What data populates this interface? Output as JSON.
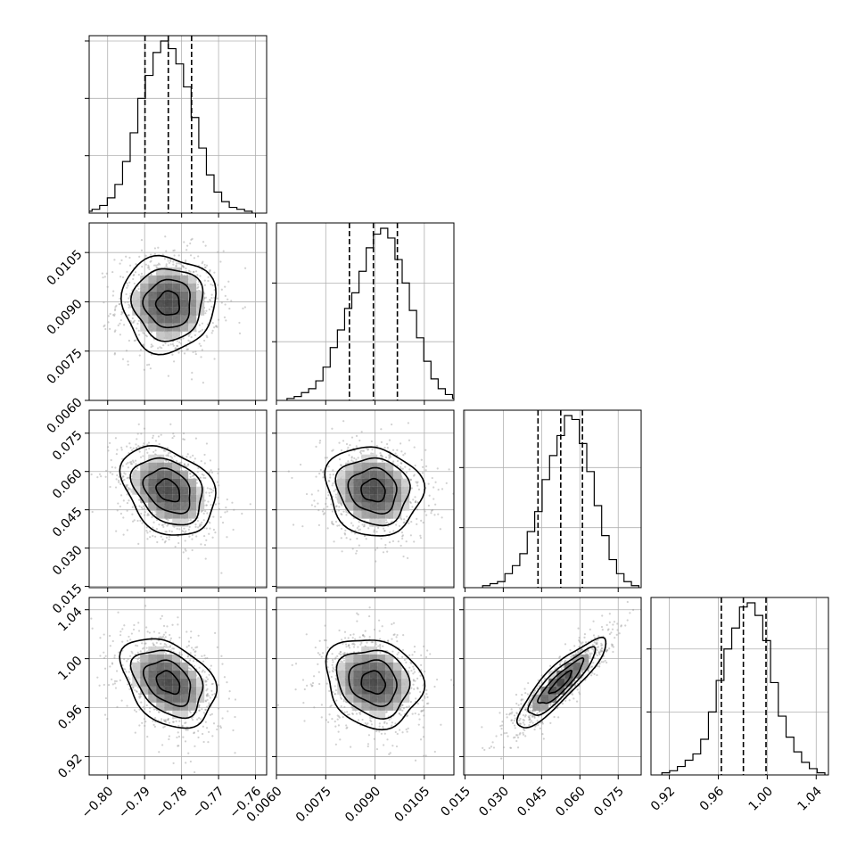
{
  "chart_data": {
    "type": "corner",
    "title": "",
    "parameters": [
      {
        "name": "",
        "range": [
          -0.805,
          -0.757
        ],
        "ticks": [
          -0.8,
          -0.79,
          -0.78,
          -0.77,
          -0.76
        ],
        "tick_labels": [
          "−0.80",
          "−0.79",
          "−0.78",
          "−0.77",
          "−0.76"
        ],
        "median": -0.7836,
        "quantiles": [
          -0.7899,
          -0.7836,
          -0.7773
        ],
        "hist_counts": [
          1,
          2,
          4,
          8,
          15,
          27,
          42,
          60,
          72,
          84,
          90,
          86,
          78,
          66,
          50,
          34,
          20,
          11,
          6,
          3,
          2,
          1
        ]
      },
      {
        "name": "",
        "range": [
          0.006,
          0.0114
        ],
        "ticks": [
          0.006,
          0.0075,
          0.009,
          0.0105
        ],
        "tick_labels": [
          "0.0060",
          "0.0075",
          "0.0090",
          "0.0105"
        ],
        "median": 0.00895,
        "quantiles": [
          0.00822,
          0.00895,
          0.00968
        ],
        "hist_counts": [
          1,
          2,
          4,
          6,
          10,
          17,
          27,
          36,
          47,
          55,
          66,
          78,
          85,
          88,
          83,
          72,
          60,
          46,
          32,
          20,
          11,
          6,
          3,
          1
        ]
      },
      {
        "name": "",
        "range": [
          0.0145,
          0.084
        ],
        "ticks": [
          0.015,
          0.03,
          0.045,
          0.06,
          0.075
        ],
        "tick_labels": [
          "0.015",
          "0.030",
          "0.045",
          "0.060",
          "0.075"
        ],
        "median": 0.0525,
        "quantiles": [
          0.0436,
          0.0525,
          0.061
        ],
        "hist_counts": [
          1,
          2,
          3,
          7,
          11,
          17,
          28,
          38,
          54,
          66,
          76,
          86,
          84,
          72,
          58,
          41,
          26,
          14,
          7,
          3,
          1
        ]
      },
      {
        "name": "",
        "range": [
          0.905,
          1.05
        ],
        "ticks": [
          0.92,
          0.96,
          1.0,
          1.04
        ],
        "tick_labels": [
          "0.92",
          "0.96",
          "1.00",
          "1.04"
        ],
        "median": 0.9805,
        "quantiles": [
          0.9625,
          0.9805,
          0.999
        ],
        "hist_counts": [
          1,
          2,
          4,
          7,
          10,
          17,
          30,
          45,
          60,
          70,
          80,
          82,
          76,
          64,
          44,
          28,
          18,
          11,
          6,
          3,
          1
        ]
      }
    ],
    "correlations": [
      [
        1.0,
        0.0,
        -0.3,
        -0.35
      ],
      [
        0.0,
        1.0,
        -0.1,
        -0.15
      ],
      [
        -0.3,
        -0.1,
        1.0,
        0.88
      ],
      [
        -0.35,
        -0.15,
        0.88,
        1.0
      ]
    ],
    "contour_levels_sigma": [
      0.5,
      1.0,
      1.5,
      2.0
    ],
    "grid": true,
    "colors": {
      "points": "#9a9a9a",
      "lines": "#000000",
      "gridlines": "#b0b0b0"
    }
  }
}
